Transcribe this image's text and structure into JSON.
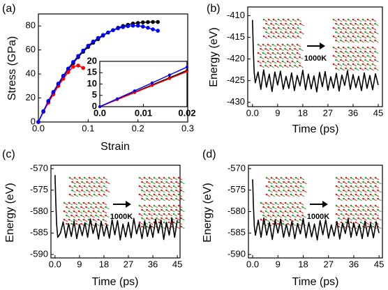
{
  "chart_data": [
    {
      "type": "line",
      "panel_label": "(a)",
      "xlabel": "Strain",
      "ylabel": "Stress (GPa)",
      "xlim": [
        0,
        0.3
      ],
      "ylim": [
        0,
        90
      ],
      "xticks": [
        {
          "value": 0,
          "label": "0.0"
        },
        0.1,
        0.2,
        0.3
      ],
      "yticks": [
        0,
        20,
        40,
        60,
        80
      ],
      "markers": true,
      "x": [
        0,
        0.01,
        0.02,
        0.03,
        0.04,
        0.05,
        0.06,
        0.07,
        0.08,
        0.09,
        0.1,
        0.11,
        0.12,
        0.13,
        0.14,
        0.15,
        0.16,
        0.17,
        0.18,
        0.19,
        0.2,
        0.21,
        0.22,
        0.23,
        0.24
      ],
      "series": [
        {
          "color": "#000000",
          "values": [
            0,
            8.5,
            16.5,
            24,
            31,
            37.5,
            43.5,
            49,
            54,
            58.5,
            62.5,
            66,
            69,
            72,
            74.5,
            76.5,
            78.5,
            80,
            81,
            82,
            82.5,
            83,
            83.2,
            83.3,
            83.3
          ]
        },
        {
          "color": "#ff0000",
          "values": [
            0,
            8.5,
            16,
            23,
            30,
            36,
            41.5,
            46,
            47,
            45,
            null,
            null,
            null,
            null,
            null,
            null,
            null,
            null,
            null,
            null,
            null,
            null,
            null,
            null,
            null
          ]
        },
        {
          "color": "#0000ff",
          "values": [
            0,
            9,
            17.5,
            25,
            32,
            38.5,
            44.5,
            50,
            55,
            59.5,
            63.5,
            67,
            70,
            72.5,
            74.5,
            76.5,
            78,
            79,
            79.8,
            80.2,
            80.2,
            79.5,
            78.5,
            77.2,
            76
          ]
        }
      ]
    },
    {
      "type": "line",
      "inset": true,
      "xlim": [
        0,
        0.02
      ],
      "ylim": [
        0,
        20
      ],
      "xticks": [
        {
          "value": 0,
          "label": "0.0"
        },
        0.01,
        0.02
      ],
      "yticks": [
        0,
        5,
        10,
        15,
        20
      ],
      "markers": true,
      "x": [
        0,
        0.004,
        0.008,
        0.012,
        0.016,
        0.02
      ],
      "series": [
        {
          "color": "#000000",
          "values": [
            0,
            3.2,
            6.4,
            9.6,
            12.8,
            16
          ]
        },
        {
          "color": "#ff0000",
          "values": [
            0,
            3.1,
            6.2,
            9.3,
            12.4,
            15.5
          ]
        },
        {
          "color": "#0000ff",
          "values": [
            0,
            3.5,
            7,
            10.5,
            14,
            17.5
          ]
        }
      ]
    },
    {
      "type": "line",
      "panel_label": "(b)",
      "xlabel": "Time (ps)",
      "ylabel": "Energy (eV)",
      "annotation": "1000K",
      "xlim": [
        -1.7,
        46.5
      ],
      "ylim": [
        -431,
        -408
      ],
      "xticks": [
        {
          "value": 0,
          "label": "0.0"
        },
        9,
        18,
        27,
        36,
        45
      ],
      "yticks": [
        -410,
        -415,
        -420,
        -425,
        -430
      ],
      "x": [
        0,
        0.3,
        0.6,
        1,
        2,
        3,
        4,
        5,
        6,
        7,
        8,
        9,
        10,
        11,
        12,
        13,
        14,
        15,
        16,
        17,
        18,
        19,
        20,
        21,
        22,
        23,
        24,
        25,
        26,
        27,
        28,
        29,
        30,
        31,
        32,
        33,
        34,
        35,
        36,
        37,
        38,
        39,
        40,
        41,
        42,
        43,
        44,
        45
      ],
      "series": [
        {
          "color": "#000000",
          "values": [
            -411,
            -418,
            -423,
            -425.5,
            -423,
            -427,
            -422.5,
            -426.5,
            -423.5,
            -427.5,
            -423,
            -426,
            -422.8,
            -427,
            -424,
            -426.8,
            -423.2,
            -427.3,
            -423.8,
            -426.2,
            -422.6,
            -427.1,
            -423.5,
            -426.9,
            -423.9,
            -427.6,
            -423.1,
            -426.4,
            -422.9,
            -427.2,
            -424.1,
            -426.7,
            -423.3,
            -427.4,
            -423.7,
            -426.1,
            -422.7,
            -427,
            -423.6,
            -426.6,
            -424,
            -427.3,
            -423.2,
            -426.8,
            -423.8,
            -427.1,
            -423.4,
            -426
          ]
        }
      ]
    },
    {
      "type": "line",
      "panel_label": "(c)",
      "xlabel": "Time (ps)",
      "ylabel": "Energy (eV)",
      "annotation": "1000K",
      "xlim": [
        -1.5,
        46
      ],
      "ylim": [
        -590.8,
        -569.2
      ],
      "xticks": [
        {
          "value": 0,
          "label": "0.0"
        },
        9,
        18,
        27,
        36,
        45
      ],
      "yticks": [
        -570,
        -575,
        -580,
        -585,
        -590
      ],
      "x": [
        0,
        0.3,
        0.6,
        1,
        2,
        3,
        4,
        5,
        6,
        7,
        8,
        9,
        10,
        11,
        12,
        13,
        14,
        15,
        16,
        17,
        18,
        19,
        20,
        21,
        22,
        23,
        24,
        25,
        26,
        27,
        28,
        29,
        30,
        31,
        32,
        33,
        34,
        35,
        36,
        37,
        38,
        39,
        40,
        41,
        42,
        43,
        44,
        45
      ],
      "series": [
        {
          "color": "#000000",
          "values": [
            -571.5,
            -578,
            -583,
            -586,
            -585,
            -582.4,
            -586.1,
            -582.8,
            -585.8,
            -582.2,
            -586.3,
            -583,
            -585.6,
            -582.6,
            -586,
            -581.7,
            -585.1,
            -582.7,
            -586.4,
            -582.3,
            -585.7,
            -583.1,
            -586.2,
            -581.9,
            -585.4,
            -582.1,
            -586.6,
            -582.9,
            -585.9,
            -582.5,
            -586.1,
            -581.6,
            -585.2,
            -582.8,
            -586.3,
            -582.2,
            -585.8,
            -583,
            -586,
            -581.8,
            -585,
            -582,
            -586.5,
            -582.5,
            -585.5,
            -581.5,
            -586,
            -582
          ]
        }
      ]
    },
    {
      "type": "line",
      "panel_label": "(d)",
      "xlabel": "Time (ps)",
      "ylabel": "Energy (eV)",
      "annotation": "1000K",
      "xlim": [
        -1.5,
        46.2
      ],
      "ylim": [
        -590.8,
        -569.2
      ],
      "xticks": [
        {
          "value": 0,
          "label": "0.0"
        },
        9,
        18,
        27,
        36,
        45
      ],
      "yticks": [
        -570,
        -575,
        -580,
        -585,
        -590
      ],
      "x": [
        0,
        0.3,
        0.6,
        1,
        2,
        3,
        4,
        5,
        6,
        7,
        8,
        9,
        10,
        11,
        12,
        13,
        14,
        15,
        16,
        17,
        18,
        19,
        20,
        21,
        22,
        23,
        24,
        25,
        26,
        27,
        28,
        29,
        30,
        31,
        32,
        33,
        34,
        35,
        36,
        37,
        38,
        39,
        40,
        41,
        42,
        43,
        44,
        45
      ],
      "series": [
        {
          "color": "#000000",
          "values": [
            -572.5,
            -579,
            -583.5,
            -585.5,
            -582,
            -586,
            -581.5,
            -585.5,
            -582.5,
            -586.5,
            -582,
            -585,
            -581.8,
            -586,
            -583,
            -585.8,
            -582.2,
            -586.3,
            -582.8,
            -585.2,
            -581.6,
            -586.1,
            -582.5,
            -585.9,
            -582.9,
            -586.6,
            -582.1,
            -585.4,
            -581.9,
            -586.2,
            -583.1,
            -585.7,
            -582.3,
            -586.4,
            -582.7,
            -585.1,
            -581.7,
            -586,
            -582.6,
            -585.6,
            -583,
            -586.3,
            -582.2,
            -585.8,
            -582.8,
            -586.1,
            -582.4,
            -585
          ]
        }
      ]
    }
  ]
}
